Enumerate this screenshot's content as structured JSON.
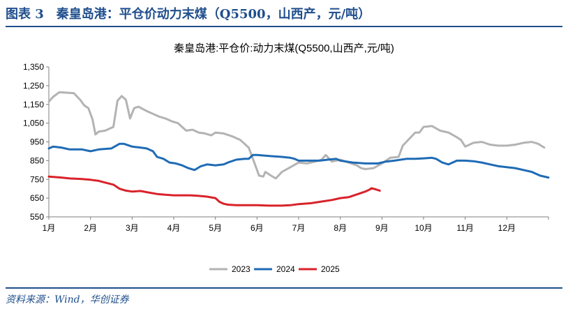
{
  "header": {
    "title": "图表 3　秦皇岛港：平仓价动力末煤（Q5500，山西产，元/吨）"
  },
  "footer": {
    "source": "资料来源：Wind，华创证券"
  },
  "colors": {
    "accent": "#1f4e8c",
    "series_2023": "#b3b3b3",
    "series_2024": "#1f6bb5",
    "series_2025": "#d9222a"
  },
  "chart_data": {
    "type": "line",
    "title": "秦皇岛港:平仓价:动力末煤(Q5500,山西产,元/吨)",
    "xlabel": "",
    "ylabel": "",
    "ylim": [
      550,
      1350
    ],
    "yticks": [
      550,
      650,
      750,
      850,
      950,
      1050,
      1150,
      1250,
      1350
    ],
    "ytick_labels": [
      "550",
      "650",
      "750",
      "850",
      "950",
      "1,050",
      "1,150",
      "1,250",
      "1,350"
    ],
    "xlim": [
      1,
      13
    ],
    "xticks": [
      1,
      2,
      3,
      4,
      5,
      6,
      7,
      8,
      9,
      10,
      11,
      12
    ],
    "xtick_labels": [
      "1月",
      "2月",
      "3月",
      "4月",
      "5月",
      "6月",
      "7月",
      "8月",
      "9月",
      "10月",
      "11月",
      "12月"
    ],
    "grid": false,
    "legend": "bottom",
    "series": [
      {
        "name": "2023",
        "color": "#b3b3b3",
        "x": [
          1.0,
          1.1,
          1.25,
          1.6,
          1.75,
          1.85,
          1.95,
          2.05,
          2.12,
          2.2,
          2.35,
          2.55,
          2.65,
          2.75,
          2.85,
          2.95,
          3.05,
          3.15,
          3.35,
          3.5,
          3.65,
          3.8,
          3.95,
          4.1,
          4.2,
          4.3,
          4.45,
          4.6,
          4.75,
          4.9,
          5.0,
          5.2,
          5.4,
          5.6,
          5.8,
          5.9,
          5.95,
          6.05,
          6.15,
          6.2,
          6.3,
          6.45,
          6.6,
          6.8,
          7.0,
          7.2,
          7.4,
          7.55,
          7.65,
          7.8,
          8.0,
          8.2,
          8.4,
          8.5,
          8.6,
          8.8,
          9.0,
          9.2,
          9.4,
          9.5,
          9.65,
          9.8,
          9.9,
          10.0,
          10.2,
          10.4,
          10.6,
          10.8,
          10.9,
          11.0,
          11.2,
          11.4,
          11.6,
          11.8,
          12.0,
          12.2,
          12.4,
          12.6,
          12.75,
          12.9
        ],
        "values": [
          1165,
          1190,
          1215,
          1210,
          1175,
          1145,
          1130,
          1070,
          990,
          1005,
          1010,
          1030,
          1170,
          1195,
          1175,
          1075,
          1130,
          1138,
          1115,
          1100,
          1085,
          1075,
          1060,
          1050,
          1030,
          1010,
          1015,
          1000,
          995,
          985,
          1000,
          995,
          980,
          960,
          920,
          860,
          830,
          770,
          765,
          790,
          775,
          755,
          790,
          815,
          840,
          835,
          845,
          855,
          880,
          845,
          855,
          840,
          825,
          810,
          805,
          810,
          835,
          865,
          870,
          930,
          965,
          1000,
          1000,
          1030,
          1035,
          1010,
          1000,
          975,
          960,
          925,
          945,
          950,
          935,
          930,
          930,
          935,
          945,
          950,
          940,
          920
        ]
      },
      {
        "name": "2024",
        "color": "#1f6bb5",
        "x": [
          1.0,
          1.1,
          1.3,
          1.5,
          1.8,
          2.0,
          2.2,
          2.5,
          2.7,
          2.8,
          3.0,
          3.2,
          3.35,
          3.5,
          3.6,
          3.75,
          3.9,
          4.05,
          4.2,
          4.35,
          4.5,
          4.65,
          4.8,
          5.0,
          5.2,
          5.3,
          5.5,
          5.7,
          5.8,
          5.9,
          6.0,
          6.3,
          6.6,
          6.8,
          6.9,
          7.0,
          7.2,
          7.5,
          7.7,
          7.9,
          8.0,
          8.3,
          8.6,
          8.9,
          9.1,
          9.3,
          9.6,
          9.8,
          10.0,
          10.2,
          10.3,
          10.45,
          10.6,
          10.8,
          11.0,
          11.2,
          11.4,
          11.6,
          11.8,
          12.0,
          12.2,
          12.4,
          12.6,
          12.8,
          13.0
        ],
        "values": [
          915,
          925,
          920,
          910,
          910,
          900,
          910,
          915,
          940,
          940,
          925,
          920,
          915,
          900,
          870,
          860,
          840,
          835,
          825,
          810,
          800,
          820,
          830,
          825,
          830,
          840,
          855,
          860,
          860,
          880,
          880,
          875,
          870,
          865,
          860,
          850,
          850,
          850,
          855,
          860,
          850,
          840,
          835,
          835,
          845,
          850,
          860,
          860,
          862,
          865,
          860,
          840,
          830,
          850,
          850,
          847,
          840,
          830,
          820,
          815,
          810,
          800,
          790,
          770,
          760
        ]
      },
      {
        "name": "2025",
        "color": "#d9222a",
        "x": [
          1.0,
          1.3,
          1.5,
          1.8,
          2.0,
          2.2,
          2.4,
          2.55,
          2.7,
          2.85,
          3.0,
          3.2,
          3.4,
          3.6,
          3.8,
          4.0,
          4.2,
          4.4,
          4.6,
          4.8,
          5.0,
          5.1,
          5.2,
          5.3,
          5.5,
          5.8,
          6.0,
          6.3,
          6.6,
          6.8,
          7.0,
          7.3,
          7.5,
          7.8,
          8.0,
          8.2,
          8.4,
          8.6,
          8.7,
          8.75,
          8.85,
          8.95
        ],
        "values": [
          765,
          760,
          755,
          752,
          748,
          742,
          730,
          722,
          700,
          690,
          685,
          688,
          680,
          672,
          668,
          665,
          665,
          665,
          662,
          658,
          650,
          630,
          620,
          615,
          612,
          612,
          612,
          610,
          610,
          612,
          618,
          623,
          630,
          640,
          650,
          655,
          670,
          685,
          695,
          703,
          697,
          690
        ]
      }
    ]
  }
}
